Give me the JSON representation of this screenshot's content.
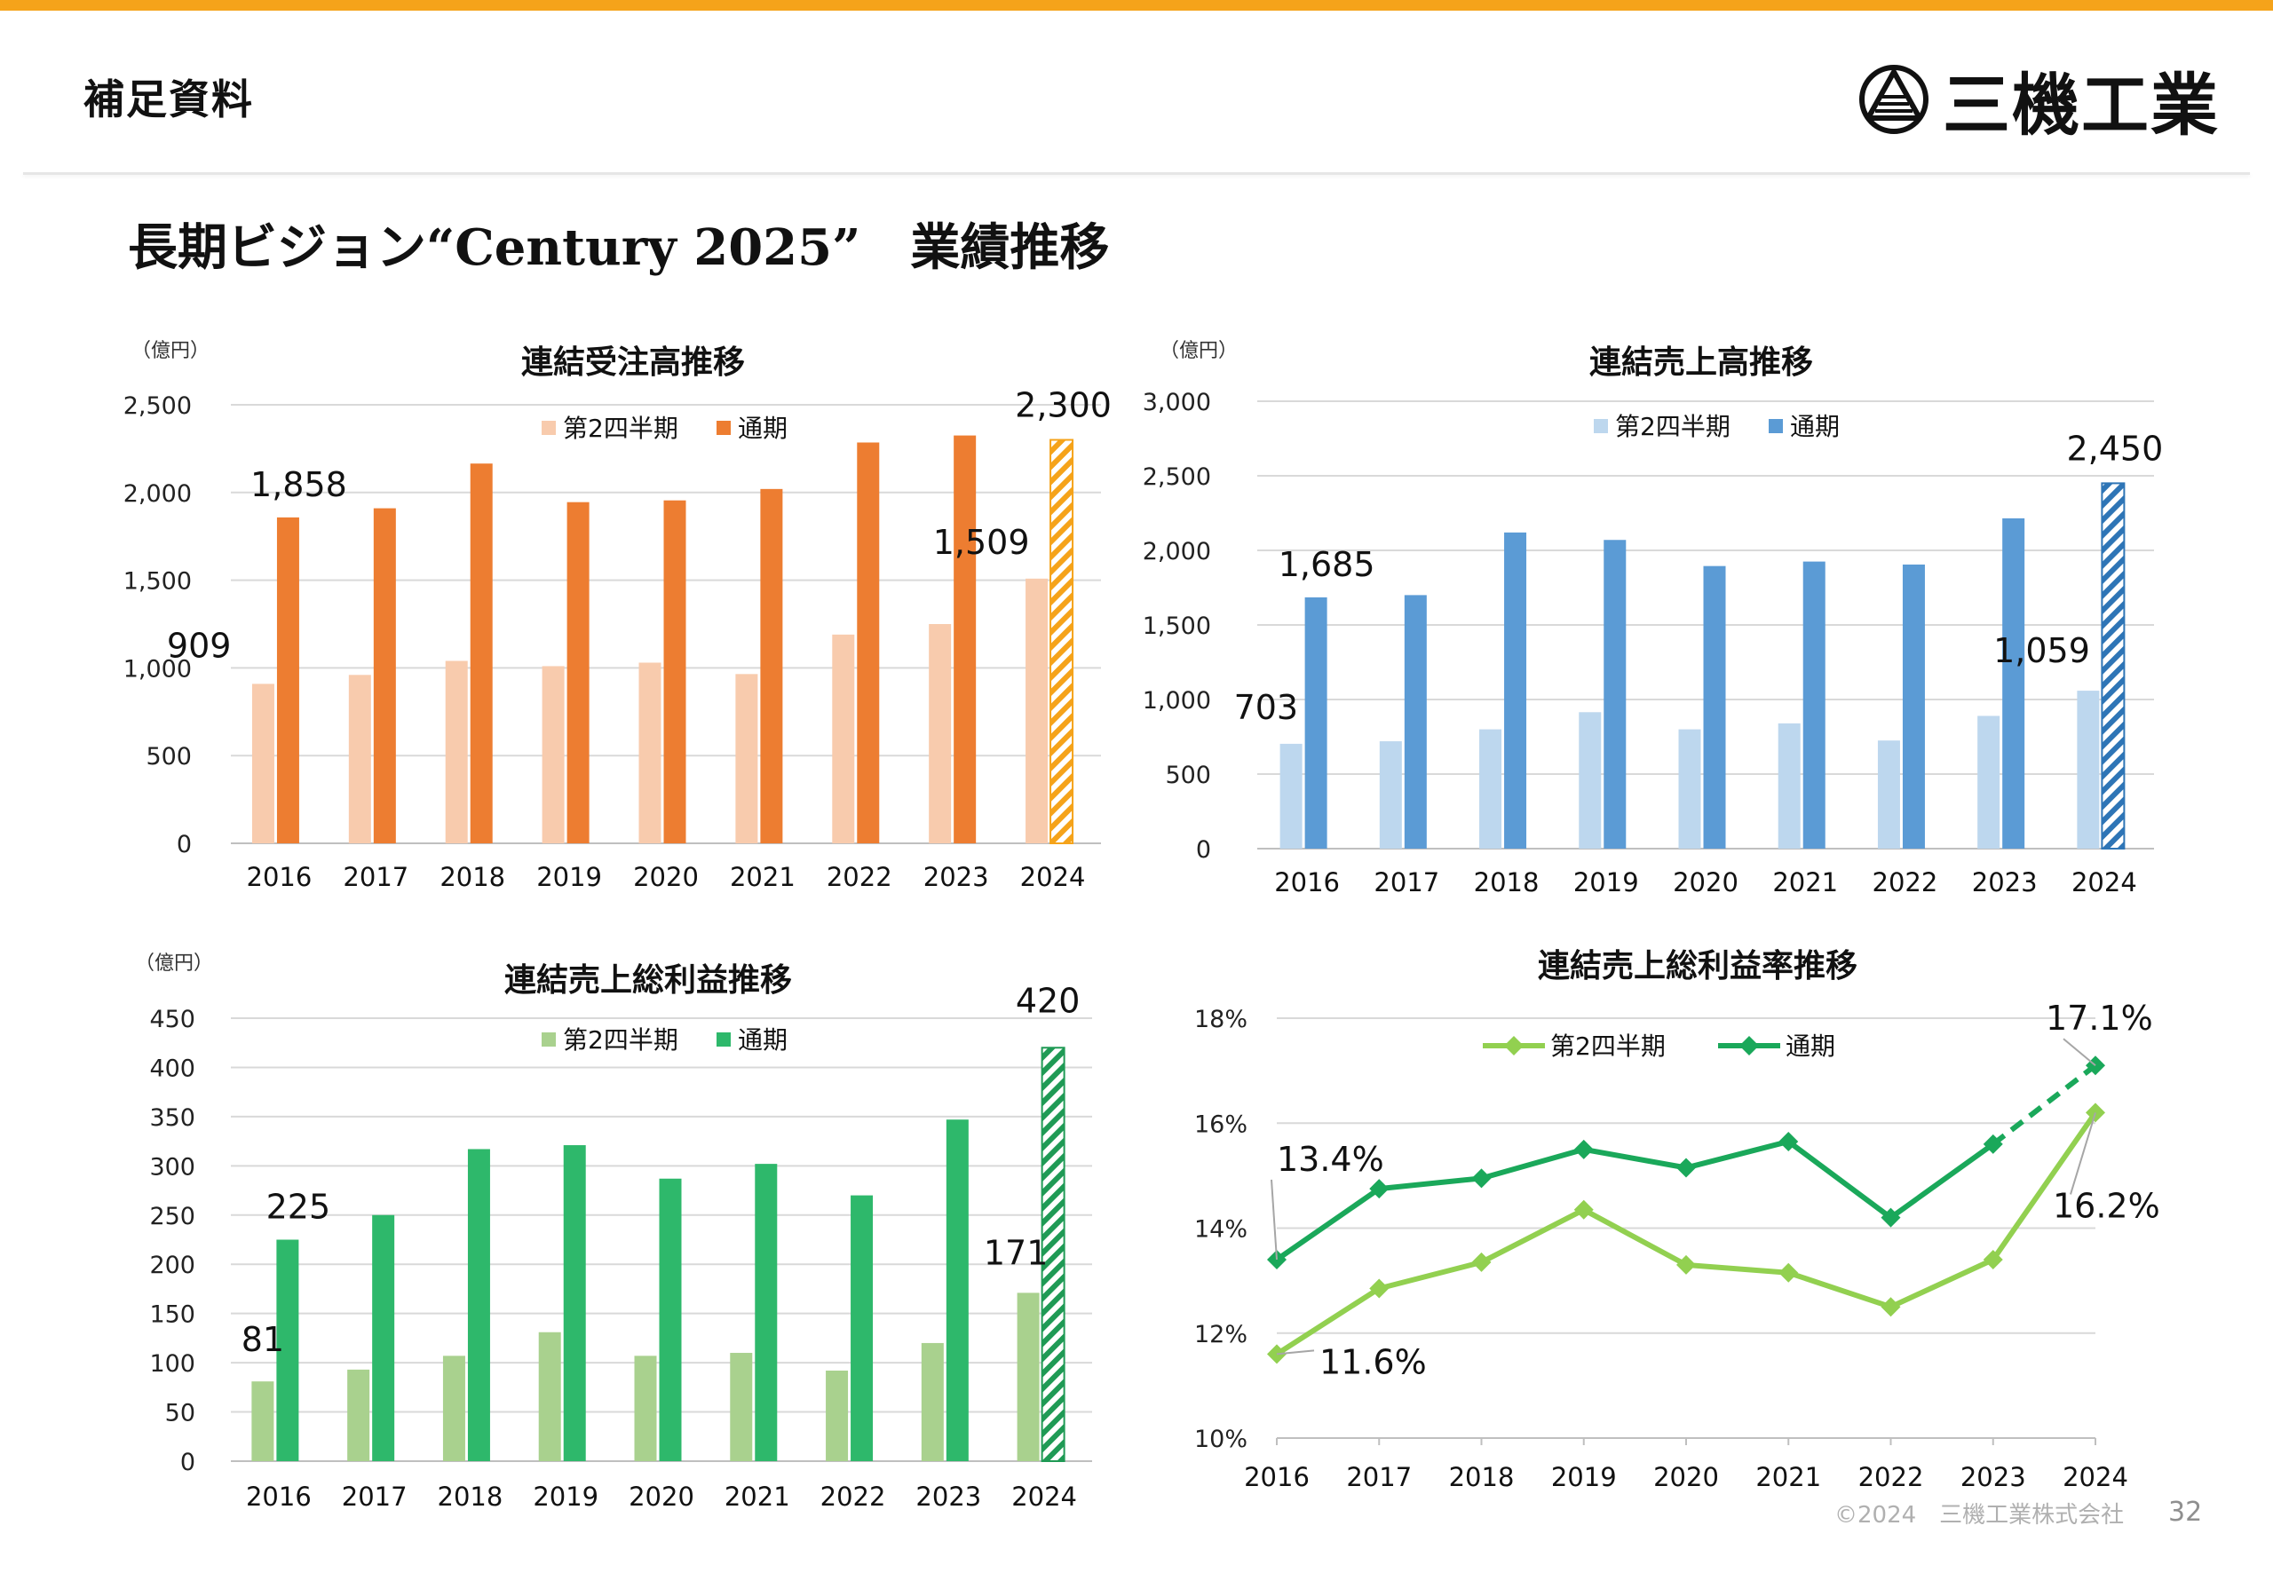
{
  "header": {
    "section_label": "補足資料",
    "company_name": "三機工業",
    "accent_color": "#f5a31a"
  },
  "page_title": "長期ビジョン“Century 2025”　業績推移",
  "footer": {
    "copyright": "©2024　三機工業株式会社",
    "page_number": "32"
  },
  "chart_data": [
    {
      "type": "bar",
      "title": "連結受注高推移",
      "unit_label": "（億円）",
      "categories": [
        "2016",
        "2017",
        "2018",
        "2019",
        "2020",
        "2021",
        "2022",
        "2023",
        "2024"
      ],
      "ylim": [
        0,
        2500
      ],
      "yticks": [
        0,
        500,
        1000,
        1500,
        2000,
        2500
      ],
      "ytick_labels": [
        "0",
        "500",
        "1,000",
        "1,500",
        "2,000",
        "2,500"
      ],
      "grid": true,
      "legend": "top-center",
      "forecast_category": "2024",
      "series": [
        {
          "name": "第2四半期",
          "color": "#f8cbad",
          "values": [
            909,
            960,
            1040,
            1010,
            1030,
            965,
            1190,
            1250,
            1509
          ]
        },
        {
          "name": "通期",
          "color": "#ed7d31",
          "forecast_color": "#f5a31a",
          "values": [
            1858,
            1910,
            2165,
            1945,
            1955,
            2020,
            2285,
            2325,
            2300
          ]
        }
      ],
      "data_labels": [
        {
          "series": 0,
          "index": 0,
          "text": "909"
        },
        {
          "series": 1,
          "index": 0,
          "text": "1,858"
        },
        {
          "series": 0,
          "index": 8,
          "text": "1,509"
        },
        {
          "series": 1,
          "index": 8,
          "text": "2,300"
        }
      ]
    },
    {
      "type": "bar",
      "title": "連結売上高推移",
      "unit_label": "（億円）",
      "categories": [
        "2016",
        "2017",
        "2018",
        "2019",
        "2020",
        "2021",
        "2022",
        "2023",
        "2024"
      ],
      "ylim": [
        0,
        3000
      ],
      "yticks": [
        0,
        500,
        1000,
        1500,
        2000,
        2500,
        3000
      ],
      "ytick_labels": [
        "0",
        "500",
        "1,000",
        "1,500",
        "2,000",
        "2,500",
        "3,000"
      ],
      "grid": true,
      "legend": "top-center",
      "forecast_category": "2024",
      "series": [
        {
          "name": "第2四半期",
          "color": "#bdd7ee",
          "values": [
            703,
            720,
            800,
            915,
            800,
            840,
            725,
            890,
            1059
          ]
        },
        {
          "name": "通期",
          "color": "#5b9bd5",
          "forecast_color": "#2e75b6",
          "values": [
            1685,
            1700,
            2120,
            2070,
            1895,
            1925,
            1905,
            2215,
            2450
          ]
        }
      ],
      "data_labels": [
        {
          "series": 0,
          "index": 0,
          "text": "703"
        },
        {
          "series": 1,
          "index": 0,
          "text": "1,685"
        },
        {
          "series": 0,
          "index": 8,
          "text": "1,059"
        },
        {
          "series": 1,
          "index": 8,
          "text": "2,450"
        }
      ]
    },
    {
      "type": "bar",
      "title": "連結売上総利益推移",
      "unit_label": "（億円）",
      "categories": [
        "2016",
        "2017",
        "2018",
        "2019",
        "2020",
        "2021",
        "2022",
        "2023",
        "2024"
      ],
      "ylim": [
        0,
        450
      ],
      "yticks": [
        0,
        50,
        100,
        150,
        200,
        250,
        300,
        350,
        400,
        450
      ],
      "ytick_labels": [
        "0",
        "50",
        "100",
        "150",
        "200",
        "250",
        "300",
        "350",
        "400",
        "450"
      ],
      "grid": true,
      "legend": "top-center",
      "forecast_category": "2024",
      "series": [
        {
          "name": "第2四半期",
          "color": "#a9d18e",
          "values": [
            81,
            93,
            107,
            131,
            107,
            110,
            92,
            120,
            171
          ]
        },
        {
          "name": "通期",
          "color": "#2eb86b",
          "forecast_color": "#1f9a55",
          "values": [
            225,
            250,
            317,
            321,
            287,
            302,
            270,
            347,
            420
          ]
        }
      ],
      "data_labels": [
        {
          "series": 0,
          "index": 0,
          "text": "81"
        },
        {
          "series": 1,
          "index": 0,
          "text": "225"
        },
        {
          "series": 0,
          "index": 8,
          "text": "171"
        },
        {
          "series": 1,
          "index": 8,
          "text": "420"
        }
      ]
    },
    {
      "type": "line",
      "title": "連結売上総利益率推移",
      "categories": [
        "2016",
        "2017",
        "2018",
        "2019",
        "2020",
        "2021",
        "2022",
        "2023",
        "2024"
      ],
      "ylim": [
        10,
        18
      ],
      "yticks": [
        10,
        12,
        14,
        16,
        18
      ],
      "ytick_labels": [
        "10%",
        "12%",
        "14%",
        "16%",
        "18%"
      ],
      "grid": true,
      "legend": "top-center",
      "forecast_category": "2024",
      "series": [
        {
          "name": "第2四半期",
          "color": "#92d050",
          "values": [
            11.6,
            12.85,
            13.35,
            14.35,
            13.3,
            13.15,
            12.5,
            13.4,
            16.2
          ]
        },
        {
          "name": "通期",
          "color": "#1aa85a",
          "values": [
            13.4,
            14.75,
            14.95,
            15.5,
            15.15,
            15.65,
            14.2,
            15.6,
            17.1
          ]
        }
      ],
      "data_labels": [
        {
          "series": 0,
          "index": 0,
          "text": "11.6%"
        },
        {
          "series": 1,
          "index": 0,
          "text": "13.4%"
        },
        {
          "series": 0,
          "index": 8,
          "text": "16.2%"
        },
        {
          "series": 1,
          "index": 8,
          "text": "17.1%"
        }
      ]
    }
  ]
}
